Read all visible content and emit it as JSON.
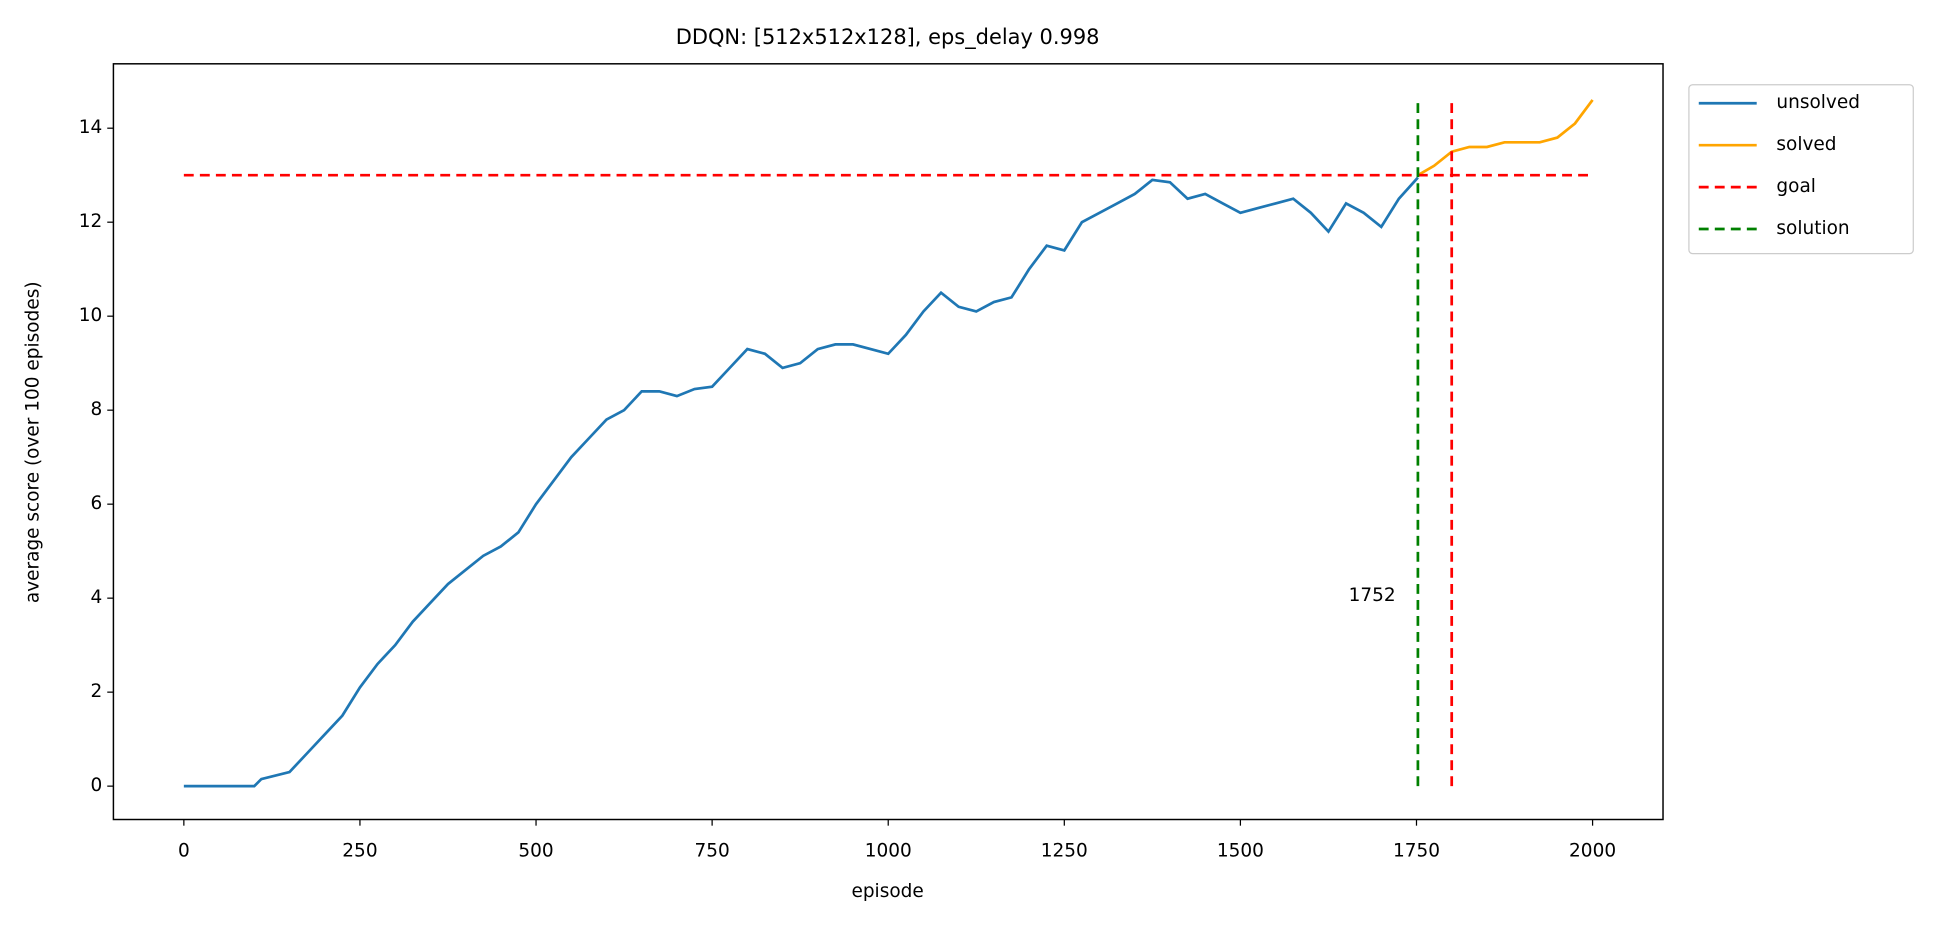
{
  "chart_data": {
    "type": "line",
    "title": "DDQN: [512x512x128], eps_delay 0.998",
    "xlabel": "episode",
    "ylabel": "average score (over 100 episodes)",
    "xlim": [
      -100,
      2100
    ],
    "ylim": [
      -0.71,
      15.37
    ],
    "xticks": [
      0,
      250,
      500,
      750,
      1000,
      1250,
      1500,
      1750,
      2000
    ],
    "yticks": [
      0,
      2,
      4,
      6,
      8,
      10,
      12,
      14
    ],
    "legend": "outside-upper-right",
    "series": [
      {
        "name": "unsolved",
        "color": "#1f77b4",
        "x": [
          0,
          100,
          110,
          150,
          175,
          200,
          225,
          250,
          275,
          300,
          325,
          350,
          375,
          400,
          425,
          450,
          475,
          500,
          525,
          550,
          575,
          600,
          625,
          650,
          675,
          700,
          725,
          750,
          775,
          800,
          825,
          850,
          875,
          900,
          925,
          950,
          975,
          1000,
          1025,
          1050,
          1075,
          1100,
          1125,
          1150,
          1175,
          1200,
          1225,
          1250,
          1275,
          1300,
          1325,
          1350,
          1375,
          1400,
          1425,
          1450,
          1475,
          1500,
          1525,
          1550,
          1575,
          1600,
          1625,
          1650,
          1675,
          1700,
          1725,
          1752
        ],
        "values": [
          0,
          0,
          0.15,
          0.3,
          0.7,
          1.1,
          1.5,
          2.1,
          2.6,
          3.0,
          3.5,
          3.9,
          4.3,
          4.6,
          4.9,
          5.1,
          5.4,
          6.0,
          6.5,
          7.0,
          7.4,
          7.8,
          8.0,
          8.4,
          8.4,
          8.3,
          8.45,
          8.5,
          8.9,
          9.3,
          9.2,
          8.9,
          9.0,
          9.3,
          9.4,
          9.4,
          9.3,
          9.2,
          9.6,
          10.1,
          10.5,
          10.2,
          10.1,
          10.3,
          10.4,
          11.0,
          11.5,
          11.4,
          12.0,
          12.2,
          12.4,
          12.6,
          12.9,
          12.85,
          12.5,
          12.6,
          12.4,
          12.2,
          12.3,
          12.4,
          12.5,
          12.2,
          11.8,
          12.4,
          12.2,
          11.9,
          12.5,
          12.95
        ]
      },
      {
        "name": "solved",
        "color": "#ffa500",
        "x": [
          1752,
          1775,
          1800,
          1825,
          1850,
          1875,
          1900,
          1925,
          1950,
          1975,
          2000
        ],
        "values": [
          13.0,
          13.2,
          13.5,
          13.6,
          13.6,
          13.7,
          13.7,
          13.7,
          13.8,
          14.1,
          14.6
        ]
      },
      {
        "name": "goal",
        "color": "#ff0000",
        "style": "dashed",
        "y": 13,
        "xrange": [
          0,
          2000
        ],
        "x": 1800,
        "yrange": [
          0,
          14.6
        ]
      },
      {
        "name": "solution",
        "color": "#008000",
        "style": "dashed",
        "x": 1752,
        "yrange": [
          0,
          14.6
        ]
      }
    ]
  }
}
